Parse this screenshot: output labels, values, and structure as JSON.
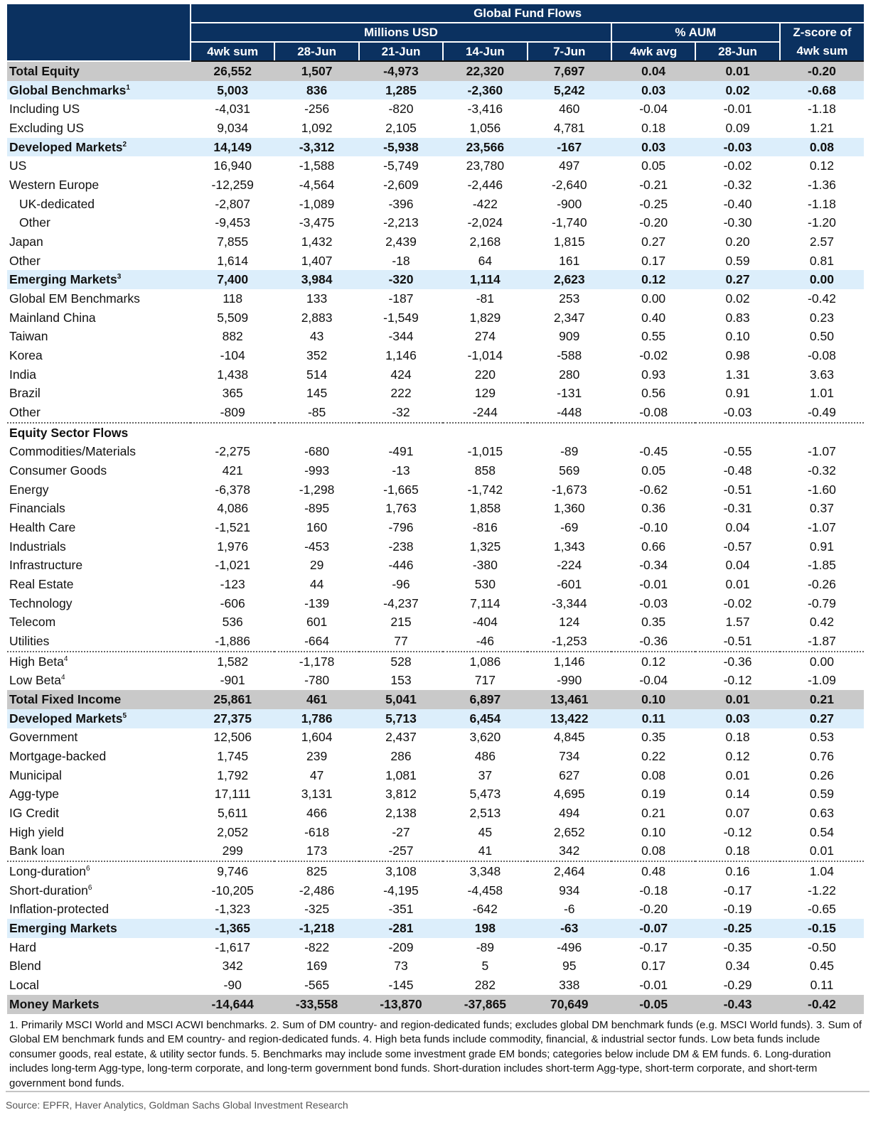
{
  "header": {
    "title": "Global Fund Flows",
    "group_millions": "Millions USD",
    "group_aum": "% AUM",
    "group_zscore_line1": "Z-score of",
    "columns": [
      "4wk sum",
      "28-Jun",
      "21-Jun",
      "14-Jun",
      "7-Jun",
      "4wk avg",
      "28-Jun",
      "4wk sum"
    ]
  },
  "colors": {
    "header_bg": "#0b3160",
    "total_bg": "#c9c9c9",
    "subtotal_bg": "#dceefb"
  },
  "rows": [
    {
      "type": "total",
      "label": "Total Equity",
      "values": [
        "26,552",
        "1,507",
        "-4,973",
        "22,320",
        "7,697",
        "0.04",
        "0.01",
        "-0.20"
      ]
    },
    {
      "type": "sub",
      "label": "Global Benchmarks",
      "sup": "1",
      "values": [
        "5,003",
        "836",
        "1,285",
        "-2,360",
        "5,242",
        "0.03",
        "0.02",
        "-0.68"
      ]
    },
    {
      "type": "plain",
      "label": "Including US",
      "values": [
        "-4,031",
        "-256",
        "-820",
        "-3,416",
        "460",
        "-0.04",
        "-0.01",
        "-1.18"
      ]
    },
    {
      "type": "plain",
      "label": "Excluding US",
      "values": [
        "9,034",
        "1,092",
        "2,105",
        "1,056",
        "4,781",
        "0.18",
        "0.09",
        "1.21"
      ]
    },
    {
      "type": "sub",
      "label": "Developed Markets",
      "sup": "2",
      "values": [
        "14,149",
        "-3,312",
        "-5,938",
        "23,566",
        "-167",
        "0.03",
        "-0.03",
        "0.08"
      ]
    },
    {
      "type": "plain",
      "label": "US",
      "values": [
        "16,940",
        "-1,588",
        "-5,749",
        "23,780",
        "497",
        "0.05",
        "-0.02",
        "0.12"
      ]
    },
    {
      "type": "plain",
      "label": "Western Europe",
      "values": [
        "-12,259",
        "-4,564",
        "-2,609",
        "-2,446",
        "-2,640",
        "-0.21",
        "-0.32",
        "-1.36"
      ]
    },
    {
      "type": "indent",
      "label": "UK-dedicated",
      "values": [
        "-2,807",
        "-1,089",
        "-396",
        "-422",
        "-900",
        "-0.25",
        "-0.40",
        "-1.18"
      ]
    },
    {
      "type": "indent",
      "label": "Other",
      "values": [
        "-9,453",
        "-3,475",
        "-2,213",
        "-2,024",
        "-1,740",
        "-0.20",
        "-0.30",
        "-1.20"
      ]
    },
    {
      "type": "plain",
      "label": "Japan",
      "values": [
        "7,855",
        "1,432",
        "2,439",
        "2,168",
        "1,815",
        "0.27",
        "0.20",
        "2.57"
      ]
    },
    {
      "type": "plain",
      "label": "Other",
      "values": [
        "1,614",
        "1,407",
        "-18",
        "64",
        "161",
        "0.17",
        "0.59",
        "0.81"
      ]
    },
    {
      "type": "sub",
      "label": "Emerging Markets",
      "sup": "3",
      "values": [
        "7,400",
        "3,984",
        "-320",
        "1,114",
        "2,623",
        "0.12",
        "0.27",
        "0.00"
      ]
    },
    {
      "type": "plain",
      "label": "Global EM Benchmarks",
      "values": [
        "118",
        "133",
        "-187",
        "-81",
        "253",
        "0.00",
        "0.02",
        "-0.42"
      ]
    },
    {
      "type": "plain",
      "label": "Mainland China",
      "values": [
        "5,509",
        "2,883",
        "-1,549",
        "1,829",
        "2,347",
        "0.40",
        "0.83",
        "0.23"
      ]
    },
    {
      "type": "plain",
      "label": "Taiwan",
      "values": [
        "882",
        "43",
        "-344",
        "274",
        "909",
        "0.55",
        "0.10",
        "0.50"
      ]
    },
    {
      "type": "plain",
      "label": "Korea",
      "values": [
        "-104",
        "352",
        "1,146",
        "-1,014",
        "-588",
        "-0.02",
        "0.98",
        "-0.08"
      ]
    },
    {
      "type": "plain",
      "label": "India",
      "values": [
        "1,438",
        "514",
        "424",
        "220",
        "280",
        "0.93",
        "1.31",
        "3.63"
      ]
    },
    {
      "type": "plain",
      "label": "Brazil",
      "values": [
        "365",
        "145",
        "222",
        "129",
        "-131",
        "0.56",
        "0.91",
        "1.01"
      ]
    },
    {
      "type": "plain",
      "sep": true,
      "label": "Other",
      "values": [
        "-809",
        "-85",
        "-32",
        "-244",
        "-448",
        "-0.08",
        "-0.03",
        "-0.49"
      ]
    },
    {
      "type": "section",
      "label": "Equity Sector Flows",
      "values": [
        "",
        "",
        "",
        "",
        "",
        "",
        "",
        ""
      ]
    },
    {
      "type": "plain",
      "label": "Commodities/Materials",
      "values": [
        "-2,275",
        "-680",
        "-491",
        "-1,015",
        "-89",
        "-0.45",
        "-0.55",
        "-1.07"
      ]
    },
    {
      "type": "plain",
      "label": "Consumer Goods",
      "values": [
        "421",
        "-993",
        "-13",
        "858",
        "569",
        "0.05",
        "-0.48",
        "-0.32"
      ]
    },
    {
      "type": "plain",
      "label": "Energy",
      "values": [
        "-6,378",
        "-1,298",
        "-1,665",
        "-1,742",
        "-1,673",
        "-0.62",
        "-0.51",
        "-1.60"
      ]
    },
    {
      "type": "plain",
      "label": "Financials",
      "values": [
        "4,086",
        "-895",
        "1,763",
        "1,858",
        "1,360",
        "0.36",
        "-0.31",
        "0.37"
      ]
    },
    {
      "type": "plain",
      "label": "Health Care",
      "values": [
        "-1,521",
        "160",
        "-796",
        "-816",
        "-69",
        "-0.10",
        "0.04",
        "-1.07"
      ]
    },
    {
      "type": "plain",
      "label": "Industrials",
      "values": [
        "1,976",
        "-453",
        "-238",
        "1,325",
        "1,343",
        "0.66",
        "-0.57",
        "0.91"
      ]
    },
    {
      "type": "plain",
      "label": "Infrastructure",
      "values": [
        "-1,021",
        "29",
        "-446",
        "-380",
        "-224",
        "-0.34",
        "0.04",
        "-1.85"
      ]
    },
    {
      "type": "plain",
      "label": "Real Estate",
      "values": [
        "-123",
        "44",
        "-96",
        "530",
        "-601",
        "-0.01",
        "0.01",
        "-0.26"
      ]
    },
    {
      "type": "plain",
      "label": "Technology",
      "values": [
        "-606",
        "-139",
        "-4,237",
        "7,114",
        "-3,344",
        "-0.03",
        "-0.02",
        "-0.79"
      ]
    },
    {
      "type": "plain",
      "label": "Telecom",
      "values": [
        "536",
        "601",
        "215",
        "-404",
        "124",
        "0.35",
        "1.57",
        "0.42"
      ]
    },
    {
      "type": "plain",
      "sep": true,
      "label": "Utilities",
      "values": [
        "-1,886",
        "-664",
        "77",
        "-46",
        "-1,253",
        "-0.36",
        "-0.51",
        "-1.87"
      ]
    },
    {
      "type": "plain",
      "label": "High Beta",
      "sup": "4",
      "values": [
        "1,582",
        "-1,178",
        "528",
        "1,086",
        "1,146",
        "0.12",
        "-0.36",
        "0.00"
      ]
    },
    {
      "type": "plain",
      "label": "Low Beta",
      "sup": "4",
      "values": [
        "-901",
        "-780",
        "153",
        "717",
        "-990",
        "-0.04",
        "-0.12",
        "-1.09"
      ]
    },
    {
      "type": "total",
      "label": "Total Fixed Income",
      "values": [
        "25,861",
        "461",
        "5,041",
        "6,897",
        "13,461",
        "0.10",
        "0.01",
        "0.21"
      ]
    },
    {
      "type": "sub",
      "label": "Developed Markets",
      "sup": "5",
      "values": [
        "27,375",
        "1,786",
        "5,713",
        "6,454",
        "13,422",
        "0.11",
        "0.03",
        "0.27"
      ]
    },
    {
      "type": "plain",
      "label": "Government",
      "values": [
        "12,506",
        "1,604",
        "2,437",
        "3,620",
        "4,845",
        "0.35",
        "0.18",
        "0.53"
      ]
    },
    {
      "type": "plain",
      "label": "Mortgage-backed",
      "values": [
        "1,745",
        "239",
        "286",
        "486",
        "734",
        "0.22",
        "0.12",
        "0.76"
      ]
    },
    {
      "type": "plain",
      "label": "Municipal",
      "values": [
        "1,792",
        "47",
        "1,081",
        "37",
        "627",
        "0.08",
        "0.01",
        "0.26"
      ]
    },
    {
      "type": "plain",
      "label": "Agg-type",
      "values": [
        "17,111",
        "3,131",
        "3,812",
        "5,473",
        "4,695",
        "0.19",
        "0.14",
        "0.59"
      ]
    },
    {
      "type": "plain",
      "label": "IG Credit",
      "values": [
        "5,611",
        "466",
        "2,138",
        "2,513",
        "494",
        "0.21",
        "0.07",
        "0.63"
      ]
    },
    {
      "type": "plain",
      "label": "High yield",
      "values": [
        "2,052",
        "-618",
        "-27",
        "45",
        "2,652",
        "0.10",
        "-0.12",
        "0.54"
      ]
    },
    {
      "type": "plain",
      "sep": true,
      "label": "Bank loan",
      "values": [
        "299",
        "173",
        "-257",
        "41",
        "342",
        "0.08",
        "0.18",
        "0.01"
      ]
    },
    {
      "type": "plain",
      "label": "Long-duration",
      "sup": "6",
      "values": [
        "9,746",
        "825",
        "3,108",
        "3,348",
        "2,464",
        "0.48",
        "0.16",
        "1.04"
      ]
    },
    {
      "type": "plain",
      "label": "Short-duration",
      "sup": "6",
      "values": [
        "-10,205",
        "-2,486",
        "-4,195",
        "-4,458",
        "934",
        "-0.18",
        "-0.17",
        "-1.22"
      ]
    },
    {
      "type": "plain",
      "label": "Inflation-protected",
      "values": [
        "-1,323",
        "-325",
        "-351",
        "-642",
        "-6",
        "-0.20",
        "-0.19",
        "-0.65"
      ]
    },
    {
      "type": "sub",
      "label": "Emerging Markets",
      "values": [
        "-1,365",
        "-1,218",
        "-281",
        "198",
        "-63",
        "-0.07",
        "-0.25",
        "-0.15"
      ]
    },
    {
      "type": "plain",
      "label": "Hard",
      "values": [
        "-1,617",
        "-822",
        "-209",
        "-89",
        "-496",
        "-0.17",
        "-0.35",
        "-0.50"
      ]
    },
    {
      "type": "plain",
      "label": "Blend",
      "values": [
        "342",
        "169",
        "73",
        "5",
        "95",
        "0.17",
        "0.34",
        "0.45"
      ]
    },
    {
      "type": "plain",
      "label": "Local",
      "values": [
        "-90",
        "-565",
        "-145",
        "282",
        "338",
        "-0.01",
        "-0.29",
        "0.11"
      ]
    },
    {
      "type": "total",
      "label": "Money Markets",
      "values": [
        "-14,644",
        "-33,558",
        "-13,870",
        "-37,865",
        "70,649",
        "-0.05",
        "-0.43",
        "-0.42"
      ]
    }
  ],
  "footnotes": "1. Primarily MSCI World and MSCI ACWI benchmarks. 2. Sum of DM country- and region-dedicated funds; excludes global DM benchmark funds (e.g. MSCI World funds). 3. Sum of Global EM benchmark funds and EM country- and region-dedicated funds. 4. High beta funds include commodity, financial, & industrial sector funds. Low beta funds include consumer goods, real estate, & utility sector funds. 5. Benchmarks may include some investment grade EM bonds; categories below include DM & EM funds. 6. Long-duration includes long-term Agg-type, long-term corporate, and long-term government bond funds.  Short-duration includes short-term Agg-type, short-term corporate, and short-term government bond funds.",
  "source": "Source: EPFR, Haver Analytics, Goldman Sachs Global Investment Research"
}
